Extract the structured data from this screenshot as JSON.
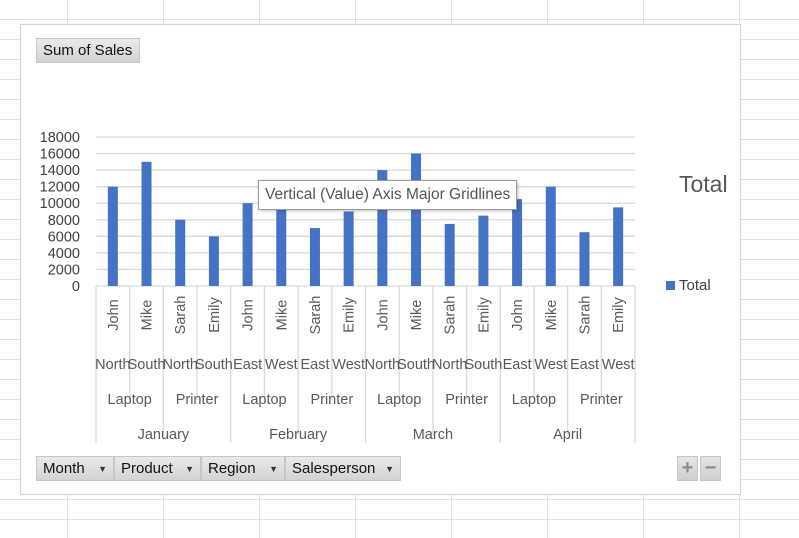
{
  "value_field": "Sum of Sales",
  "legend": {
    "title": "Total",
    "entry": "Total"
  },
  "tooltip": "Vertical (Value) Axis Major Gridlines",
  "axis_fields": [
    {
      "label": "Month"
    },
    {
      "label": "Product"
    },
    {
      "label": "Region"
    },
    {
      "label": "Salesperson"
    }
  ],
  "controls": {
    "expand": "+",
    "collapse": "−"
  },
  "colors": {
    "bar": "#4472c4",
    "gridline": "#d9d9d9",
    "axis_text": "#595959"
  },
  "chart_data": {
    "type": "bar",
    "legend": "right",
    "grid": true,
    "ylim": [
      0,
      18000
    ],
    "yticks": [
      "18000",
      "16000",
      "14000",
      "12000",
      "10000",
      "8000",
      "6000",
      "4000",
      "2000",
      "0"
    ],
    "series": [
      {
        "name": "Total",
        "values": [
          12000,
          15000,
          8000,
          6000,
          10000,
          11000,
          7000,
          9000,
          14000,
          16000,
          7500,
          8500,
          10500,
          12000,
          6500,
          9500
        ]
      }
    ],
    "categories": [
      {
        "salesperson": "John",
        "region": "North"
      },
      {
        "salesperson": "Mike",
        "region": "South"
      },
      {
        "salesperson": "Sarah",
        "region": "North"
      },
      {
        "salesperson": "Emily",
        "region": "South"
      },
      {
        "salesperson": "John",
        "region": "East"
      },
      {
        "salesperson": "Mike",
        "region": "West"
      },
      {
        "salesperson": "Sarah",
        "region": "East"
      },
      {
        "salesperson": "Emily",
        "region": "West"
      },
      {
        "salesperson": "John",
        "region": "North"
      },
      {
        "salesperson": "Mike",
        "region": "South"
      },
      {
        "salesperson": "Sarah",
        "region": "North"
      },
      {
        "salesperson": "Emily",
        "region": "South"
      },
      {
        "salesperson": "John",
        "region": "East"
      },
      {
        "salesperson": "Mike",
        "region": "West"
      },
      {
        "salesperson": "Sarah",
        "region": "East"
      },
      {
        "salesperson": "Emily",
        "region": "West"
      }
    ],
    "products": [
      "Laptop",
      "Printer",
      "Laptop",
      "Printer",
      "Laptop",
      "Printer",
      "Laptop",
      "Printer"
    ],
    "months": [
      "January",
      "February",
      "March",
      "April"
    ]
  }
}
